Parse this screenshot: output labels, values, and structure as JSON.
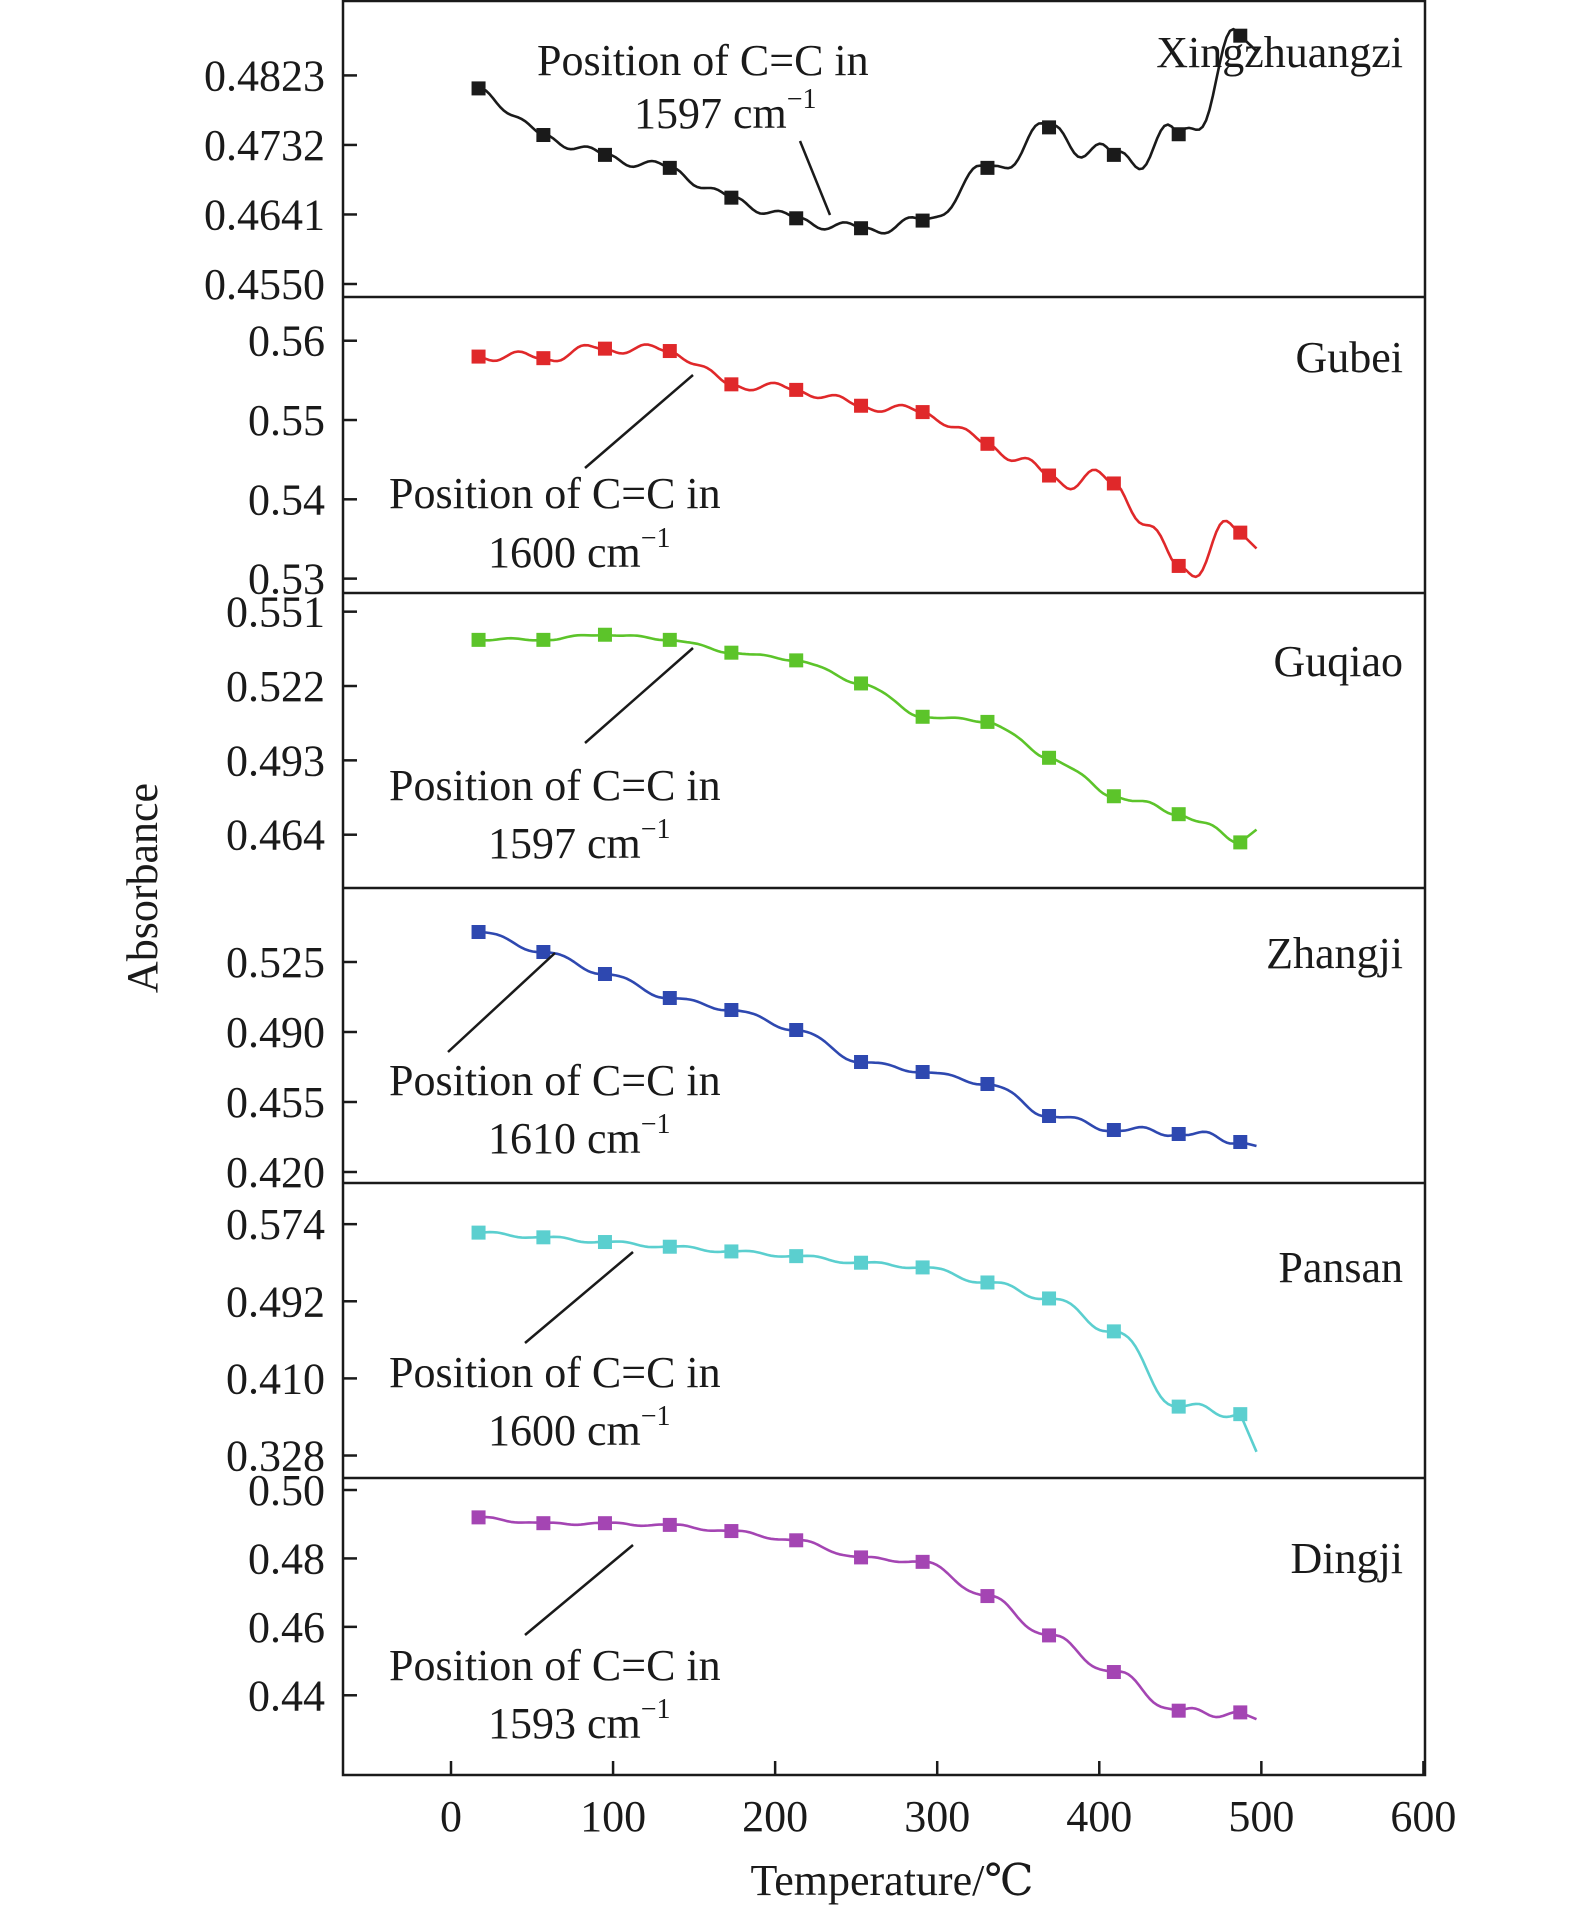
{
  "chart_data": {
    "type": "line",
    "ylabel": "Absorbance",
    "xlabel": "Temperature/℃",
    "xlim": [
      -70,
      600
    ],
    "x_ticks": [
      "0",
      "100",
      "200",
      "300",
      "400",
      "500",
      "600"
    ],
    "marker_x": [
      17,
      57,
      95,
      135,
      173,
      213,
      253,
      291,
      331,
      369,
      409,
      449,
      487
    ],
    "panels": [
      {
        "name": "Xingzhuangzi",
        "color": "#1a1a1a",
        "ylim": [
          0.455,
          0.4906
        ],
        "y_ticks": [
          0.4823,
          0.4732,
          0.4641,
          0.455
        ],
        "y_tick_labels": [
          "0.4823",
          "0.4732",
          "0.4641",
          "0.4550"
        ],
        "values": [
          0.4806,
          0.4745,
          0.4719,
          0.4702,
          0.4663,
          0.4636,
          0.4623,
          0.4633,
          0.4702,
          0.4755,
          0.4719,
          0.4746,
          0.4875
        ],
        "annotation": {
          "line1": "Position of C=C in",
          "line2": "1597 cm",
          "sup": "−1"
        }
      },
      {
        "name": "Gubei",
        "color": "#e0282a",
        "ylim": [
          0.5297,
          0.564
        ],
        "y_ticks": [
          0.56,
          0.55,
          0.54,
          0.53
        ],
        "y_tick_labels": [
          "0.56",
          "0.55",
          "0.54",
          "0.53"
        ],
        "values": [
          0.558,
          0.5578,
          0.559,
          0.5587,
          0.5545,
          0.5538,
          0.5518,
          0.551,
          0.547,
          0.543,
          0.542,
          0.5316,
          0.5358
        ],
        "annotation": {
          "line1": "Position of C=C in",
          "line2": "1600 cm",
          "sup": "−1"
        }
      },
      {
        "name": "Guqiao",
        "color": "#5cc42a",
        "ylim": [
          0.4475,
          0.5536
        ],
        "y_ticks": [
          0.551,
          0.522,
          0.493,
          0.464
        ],
        "y_tick_labels": [
          "0.551",
          "0.522",
          "0.493",
          "0.464"
        ],
        "values": [
          0.54,
          0.54,
          0.542,
          0.54,
          0.535,
          0.532,
          0.523,
          0.51,
          0.508,
          0.494,
          0.479,
          0.472,
          0.461
        ],
        "annotation": {
          "line1": "Position of C=C in",
          "line2": "1597 cm",
          "sup": "−1"
        }
      },
      {
        "name": "Zhangji",
        "color": "#2e48b0",
        "ylim": [
          0.42,
          0.556
        ],
        "y_ticks": [
          0.525,
          0.49,
          0.455,
          0.42
        ],
        "y_tick_labels": [
          "0.525",
          "0.490",
          "0.455",
          "0.420"
        ],
        "values": [
          0.54,
          0.53,
          0.519,
          0.507,
          0.501,
          0.491,
          0.475,
          0.47,
          0.464,
          0.448,
          0.441,
          0.439,
          0.435
        ],
        "annotation": {
          "line1": "Position of C=C in",
          "line2": "1610 cm",
          "sup": "−1"
        }
      },
      {
        "name": "Pansan",
        "color": "#5bcfcf",
        "ylim": [
          0.3158,
          0.605
        ],
        "y_ticks": [
          0.574,
          0.492,
          0.41,
          0.328
        ],
        "y_tick_labels": [
          "0.574",
          "0.492",
          "0.410",
          "0.328"
        ],
        "values": [
          0.565,
          0.56,
          0.555,
          0.55,
          0.545,
          0.54,
          0.533,
          0.528,
          0.512,
          0.495,
          0.46,
          0.38,
          0.372
        ],
        "annotation": {
          "line1": "Position of C=C in",
          "line2": "1600 cm",
          "sup": "−1"
        }
      },
      {
        "name": "Dingji",
        "color": "#a445b3",
        "ylim": [
          0.4205,
          0.5
        ],
        "y_ticks": [
          0.5,
          0.48,
          0.46,
          0.44
        ],
        "y_tick_labels": [
          "0.50",
          "0.48",
          "0.46",
          "0.44"
        ],
        "values": [
          0.492,
          0.4903,
          0.4903,
          0.4898,
          0.488,
          0.4853,
          0.4803,
          0.479,
          0.469,
          0.4575,
          0.4468,
          0.4355,
          0.435
        ],
        "annotation": {
          "line1": "Position of C=C in",
          "line2": "1593 cm",
          "sup": "−1"
        }
      }
    ]
  }
}
